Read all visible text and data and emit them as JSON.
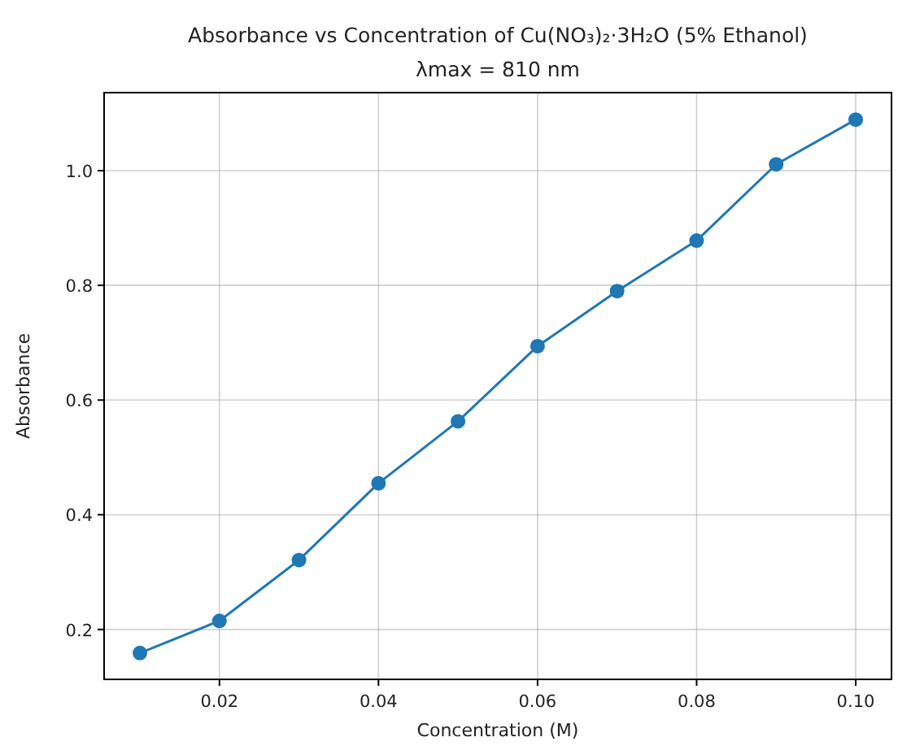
{
  "chart_data": {
    "type": "line",
    "title": "Absorbance vs Concentration of Cu(NO₃)₂·3H₂O (5% Ethanol)",
    "subtitle": "λmax = 810 nm",
    "xlabel": "Concentration (M)",
    "ylabel": "Absorbance",
    "x": [
      0.01,
      0.02,
      0.03,
      0.04,
      0.05,
      0.06,
      0.07,
      0.08,
      0.09,
      0.1
    ],
    "series": [
      {
        "color": "#1f77b4",
        "values": [
          0.159,
          0.215,
          0.321,
          0.455,
          0.563,
          0.694,
          0.79,
          0.878,
          1.011,
          1.089
        ]
      }
    ],
    "xlim": [
      0.0055,
      0.1045
    ],
    "ylim": [
      0.113,
      1.136
    ],
    "xticks": [
      0.02,
      0.04,
      0.06,
      0.08,
      {
        "value": 0.1,
        "label": "0.10"
      }
    ],
    "yticks": [
      0.2,
      0.4,
      0.6,
      0.8,
      {
        "value": 1.0,
        "label": "1.0"
      }
    ],
    "grid": true,
    "marker": "circle",
    "line_style": "solid"
  }
}
